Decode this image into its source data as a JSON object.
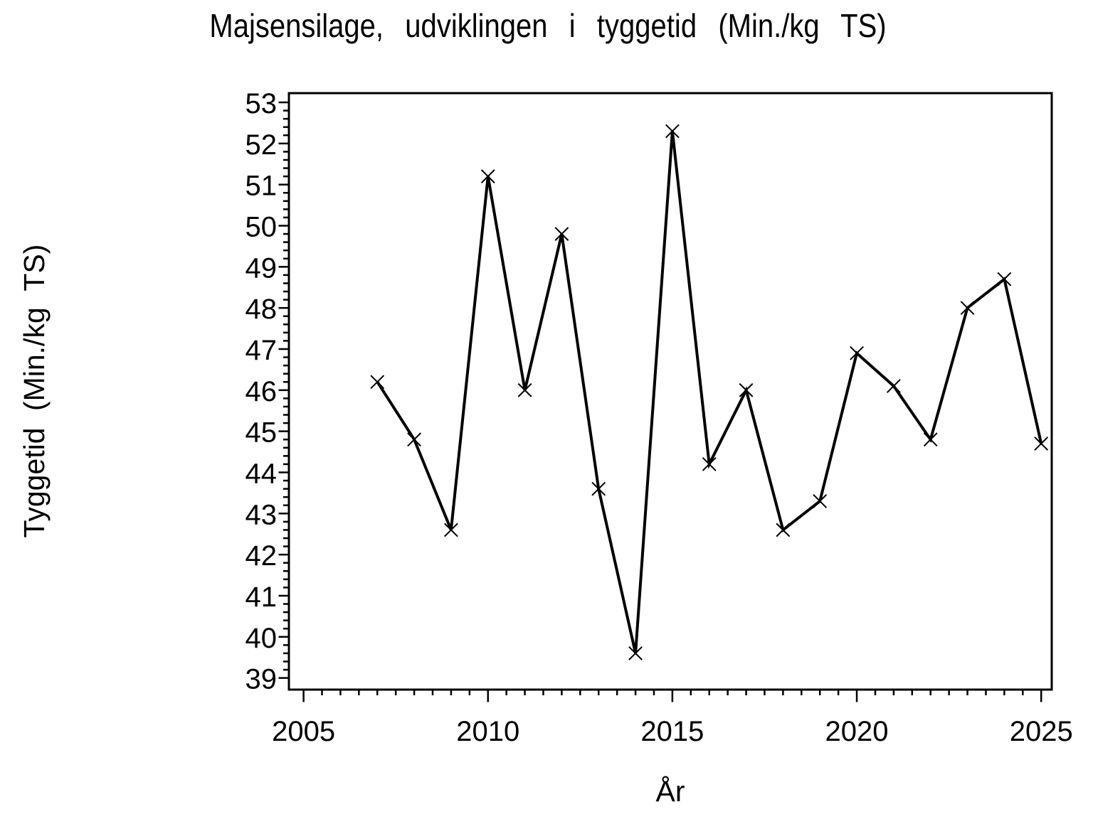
{
  "page": {
    "background_color": "#FFFFFF",
    "foreground_color": "#000000"
  },
  "chart_data": {
    "type": "line",
    "title": "Majsensilage, udviklingen i tyggetid (Min./kg TS)",
    "xlabel": "År",
    "ylabel": "Tyggetid (Min./kg TS)",
    "legend": "none",
    "grid": "off",
    "marker": "x",
    "line_color": "#000000",
    "series": [
      {
        "name": "Tyggetid (Min./kg TS)",
        "x": [
          2007,
          2008,
          2009,
          2010,
          2011,
          2012,
          2013,
          2014,
          2015,
          2016,
          2017,
          2018,
          2019,
          2020,
          2021,
          2022,
          2023,
          2024,
          2025
        ],
        "values": [
          46.2,
          44.8,
          42.6,
          51.2,
          46.0,
          49.8,
          43.6,
          39.6,
          52.3,
          44.2,
          46.0,
          42.6,
          43.3,
          46.9,
          46.1,
          44.8,
          48.0,
          48.7,
          44.7
        ]
      }
    ],
    "x_ticks": [
      2005,
      2010,
      2015,
      2020,
      2025
    ],
    "y_ticks": [
      39,
      40,
      41,
      42,
      43,
      44,
      45,
      46,
      47,
      48,
      49,
      50,
      51,
      52,
      53
    ],
    "x_minor_step": 0.5,
    "y_minor_step": 0.2,
    "xlim": [
      2004.6,
      2025.3
    ],
    "ylim": [
      38.7,
      53.2
    ]
  }
}
